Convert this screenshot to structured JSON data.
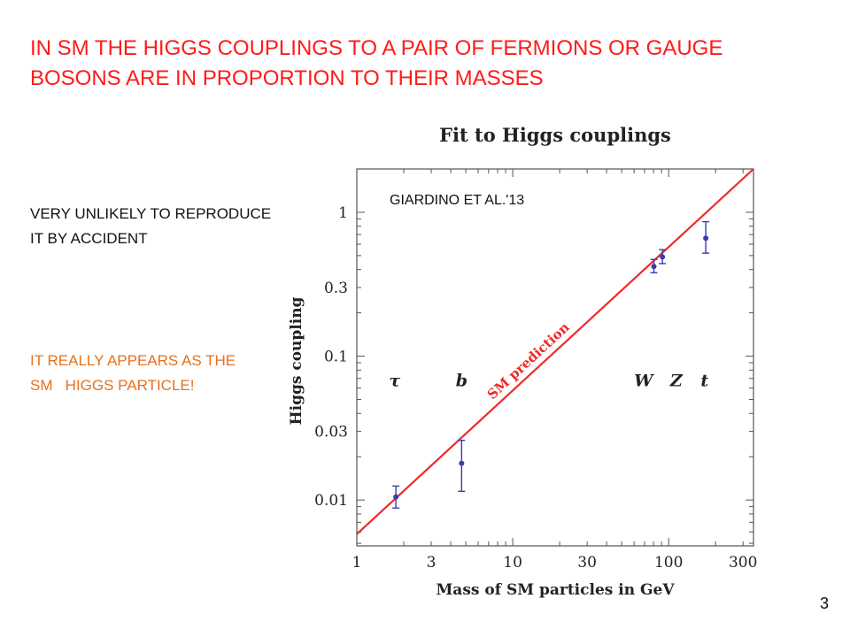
{
  "headline": {
    "line1": "IN SM THE HIGGS COUPLINGS TO A PAIR OF FERMIONS OR GAUGE",
    "line2": "BOSONS ARE IN PROPORTION TO THEIR MASSES"
  },
  "notes": {
    "black_line1": "VERY UNLIKELY TO REPRODUCE",
    "black_line2": "IT BY ACCIDENT",
    "orange_line1": "IT REALLY APPEARS AS THE",
    "orange_line2": "SM   HIGGS PARTICLE!"
  },
  "page_number": "3",
  "colors": {
    "headline": "#ff1a1a",
    "orange_note": "#e8701c",
    "sm_line": "#ee2a2a",
    "points": "#3b3bb0"
  },
  "chart_data": {
    "type": "scatter",
    "title": "Fit to Higgs couplings",
    "annotation": "GIARDINO ET AL.'13",
    "xlabel": "Mass of SM particles in GeV",
    "ylabel": "Higgs coupling",
    "x_scale": "log",
    "y_scale": "log",
    "xlim": [
      1,
      350
    ],
    "ylim": [
      0.0048,
      2.0
    ],
    "x_ticks": [
      {
        "value": 1,
        "label": "1"
      },
      {
        "value": 3,
        "label": "3"
      },
      {
        "value": 10,
        "label": "10"
      },
      {
        "value": 30,
        "label": "30"
      },
      {
        "value": 100,
        "label": "100"
      },
      {
        "value": 300,
        "label": "300"
      }
    ],
    "y_ticks": [
      {
        "value": 0.01,
        "label": "0.01"
      },
      {
        "value": 0.03,
        "label": "0.03"
      },
      {
        "value": 0.1,
        "label": "0.1"
      },
      {
        "value": 0.3,
        "label": "0.3"
      },
      {
        "value": 1,
        "label": "1"
      }
    ],
    "sm_line": {
      "label": "SM prediction",
      "x": [
        1,
        350
      ],
      "y": [
        0.0058,
        2.03
      ]
    },
    "points": [
      {
        "particle": "τ",
        "x": 1.78,
        "y": 0.0105,
        "y_low": 0.0088,
        "y_high": 0.0125,
        "label_x": 1.75
      },
      {
        "particle": "b",
        "x": 4.7,
        "y": 0.018,
        "y_low": 0.0115,
        "y_high": 0.026,
        "label_x": 4.7
      },
      {
        "particle": "W",
        "x": 80.4,
        "y": 0.42,
        "y_low": 0.38,
        "y_high": 0.47,
        "label_x": 69
      },
      {
        "particle": "Z",
        "x": 91.2,
        "y": 0.49,
        "y_low": 0.44,
        "y_high": 0.55,
        "label_x": 112
      },
      {
        "particle": "t",
        "x": 173,
        "y": 0.66,
        "y_low": 0.52,
        "y_high": 0.86,
        "label_x": 170
      }
    ],
    "particle_label_y": 0.062,
    "grid": false,
    "legend": "none"
  }
}
